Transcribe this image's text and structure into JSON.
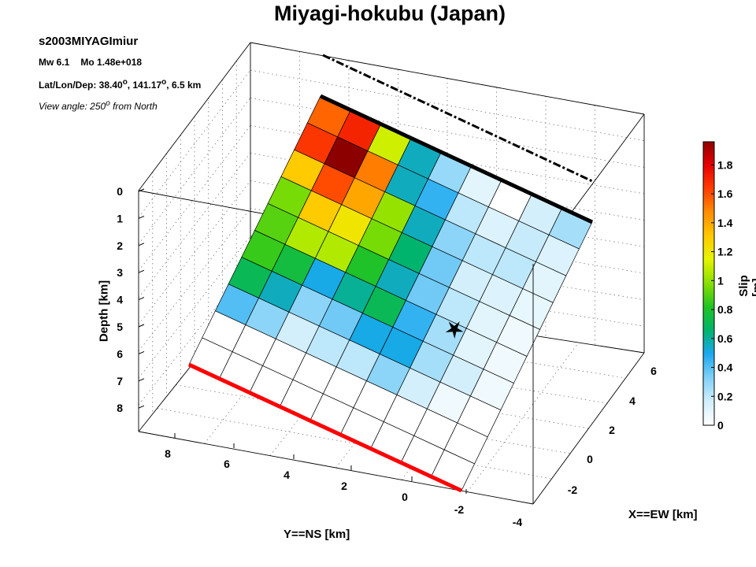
{
  "title": "Miyagi-hokubu (Japan)",
  "info": {
    "event_id": "s2003MIYAGImiur",
    "magnitude": "Mw 6.1",
    "moment": "Mo 1.48e+018",
    "location_prefix": "Lat/Lon/Dep: 38.40",
    "lon_value": ", 141.17",
    "depth_value": ", 6.5 km",
    "degree_sup": "o",
    "view_prefix": "View angle: 250",
    "view_suffix": " from North"
  },
  "colorbar": {
    "label": "Slip [m]",
    "ticks": [
      "0",
      "0.2",
      "0.4",
      "0.6",
      "0.8",
      "1",
      "1.2",
      "1.4",
      "1.6",
      "1.8"
    ],
    "max": 1.96,
    "colormap": [
      "#ffffff",
      "#cfeefc",
      "#7fd0f7",
      "#1aa8ef",
      "#00b46a",
      "#22c422",
      "#8ae000",
      "#e6f400",
      "#ffc800",
      "#ff8c00",
      "#ff3c00",
      "#e60000",
      "#8c0000"
    ]
  },
  "chart_data": {
    "type": "heatmap",
    "description_axes": {
      "xlabel": "X==EW [km]",
      "ylabel": "Y==NS [km]",
      "zlabel": "Depth [km]"
    },
    "x_ticks": [
      "-4",
      "-2",
      "0",
      "2",
      "4",
      "6"
    ],
    "y_ticks": [
      "-2",
      "0",
      "2",
      "4",
      "6",
      "8"
    ],
    "z_ticks": [
      "0",
      "1",
      "2",
      "3",
      "4",
      "5",
      "6",
      "7",
      "8"
    ],
    "colorbar_range": [
      0,
      1.96
    ],
    "fault_grid": {
      "strike_cells": 9,
      "dip_cells": 10,
      "slip_m": [
        [
          1.55,
          1.7,
          1.1,
          0.55,
          0.28,
          0.1,
          0.0,
          0.15,
          0.25
        ],
        [
          1.65,
          1.96,
          1.5,
          0.55,
          0.45,
          0.2,
          0.12,
          0.18,
          0.12
        ],
        [
          1.3,
          1.6,
          1.4,
          1.0,
          0.55,
          0.3,
          0.2,
          0.2,
          0.1
        ],
        [
          0.95,
          1.3,
          1.2,
          0.95,
          0.65,
          0.35,
          0.15,
          0.12,
          0.08
        ],
        [
          0.9,
          1.05,
          1.05,
          0.8,
          0.55,
          0.35,
          0.2,
          0.1,
          0.05
        ],
        [
          0.85,
          0.75,
          0.5,
          0.6,
          0.7,
          0.45,
          0.25,
          0.1,
          0.05
        ],
        [
          0.7,
          0.55,
          0.3,
          0.35,
          0.5,
          0.5,
          0.25,
          0.15,
          0.05
        ],
        [
          0.4,
          0.3,
          0.15,
          0.2,
          0.2,
          0.3,
          0.15,
          0.05,
          0.0
        ],
        [
          0.0,
          0.0,
          0.0,
          0.0,
          0.0,
          0.0,
          0.0,
          0.0,
          0.0
        ],
        [
          0.0,
          0.0,
          0.0,
          0.0,
          0.0,
          0.0,
          0.0,
          0.0,
          0.0
        ]
      ]
    },
    "fault_top_edge_color": "#000000",
    "fault_bottom_edge_color": "#ff0000",
    "surface_trace_style": "dashed black line",
    "hypocenter_marker": "black star"
  }
}
